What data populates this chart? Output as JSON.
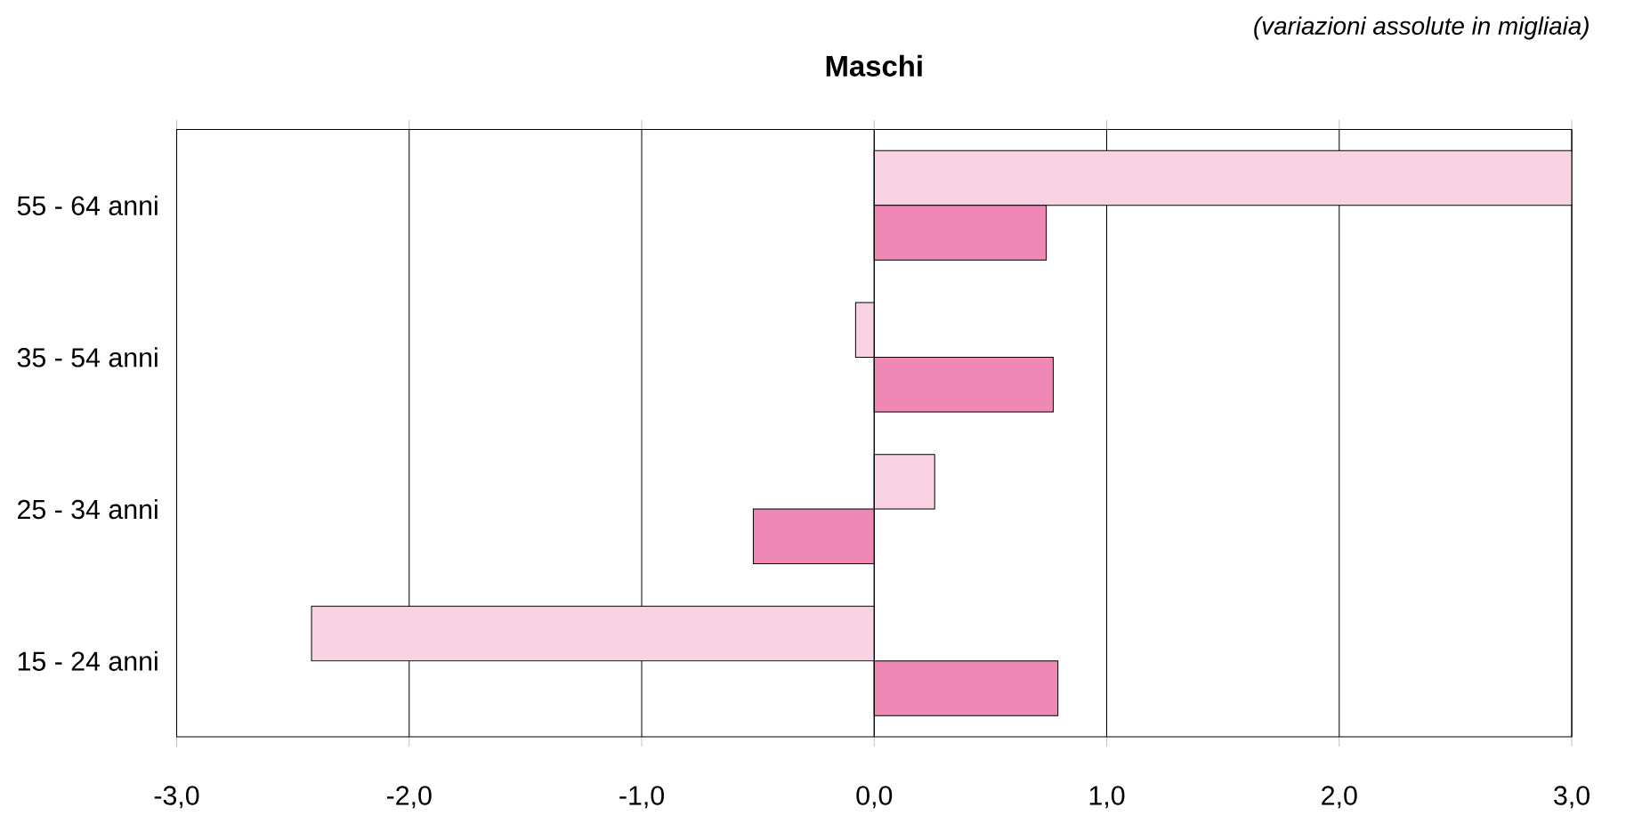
{
  "chart_data": {
    "type": "bar",
    "orientation": "horizontal",
    "title": "Maschi",
    "annotations": [
      "(variazioni assolute in migliaia)"
    ],
    "categories": [
      "55 - 64 anni",
      "35 - 54 anni",
      "25 - 34 anni",
      "15 - 24 anni"
    ],
    "series": [
      {
        "color": "#f9d3e4",
        "values": [
          3.0,
          -0.08,
          0.26,
          -2.42
        ]
      },
      {
        "color": "#f088b6",
        "values": [
          0.74,
          0.77,
          -0.52,
          0.79
        ]
      }
    ],
    "xlim": [
      -3,
      3
    ],
    "xticks": [
      {
        "value": -3,
        "label": "-3,0"
      },
      {
        "value": -2,
        "label": "-2,0"
      },
      {
        "value": -1,
        "label": "-1,0"
      },
      {
        "value": 0,
        "label": "0,0"
      },
      {
        "value": 1,
        "label": "1,0"
      },
      {
        "value": 2,
        "label": "2,0"
      },
      {
        "value": 3,
        "label": "3,0"
      }
    ],
    "grid": "x"
  }
}
